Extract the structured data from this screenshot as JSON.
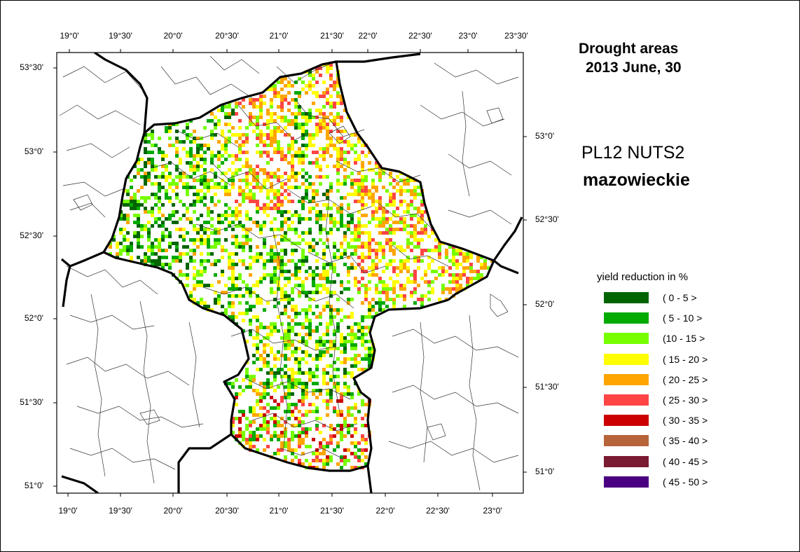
{
  "title": {
    "line1": "Drought areas",
    "line2": "2013 June, 30"
  },
  "region": {
    "code": "PL12 NUTS2",
    "name": "mazowieckie"
  },
  "axes": {
    "top_labels": [
      "19°0'",
      "19°30'",
      "20°0'",
      "20°30'",
      "21°0'",
      "21°30'",
      "22°0'",
      "22°30'",
      "23°0'",
      "23°30'"
    ],
    "bottom_labels": [
      "19°0'",
      "19°30'",
      "20°0'",
      "20°30'",
      "21°0'",
      "21°30'",
      "22°0'",
      "22°30'",
      "23°0'"
    ],
    "left_labels": [
      "53°30'",
      "53°0'",
      "52°30'",
      "52°0'",
      "51°30'",
      "51°0'"
    ],
    "right_labels": [
      "53°0'",
      "52°30'",
      "52°0'",
      "51°30'",
      "51°0'"
    ]
  },
  "legend": {
    "title": "yield reduction in  %",
    "items": [
      {
        "label": "( 0 - 5 >",
        "color": "#006400"
      },
      {
        "label": "( 5 - 10 >",
        "color": "#00aa00"
      },
      {
        "label": "(10 - 15 >",
        "color": "#77ff00"
      },
      {
        "label": "( 15 - 20 >",
        "color": "#ffff00"
      },
      {
        "label": "( 20 - 25 >",
        "color": "#ffa500"
      },
      {
        "label": "( 25 - 30 >",
        "color": "#ff4444"
      },
      {
        "label": "( 30 - 35 >",
        "color": "#cc0000"
      },
      {
        "label": "( 35 - 40 >",
        "color": "#b8643a"
      },
      {
        "label": "( 40 - 45 >",
        "color": "#7a1a33"
      },
      {
        "label": "( 45 - 50 >",
        "color": "#4b0082"
      }
    ]
  }
}
